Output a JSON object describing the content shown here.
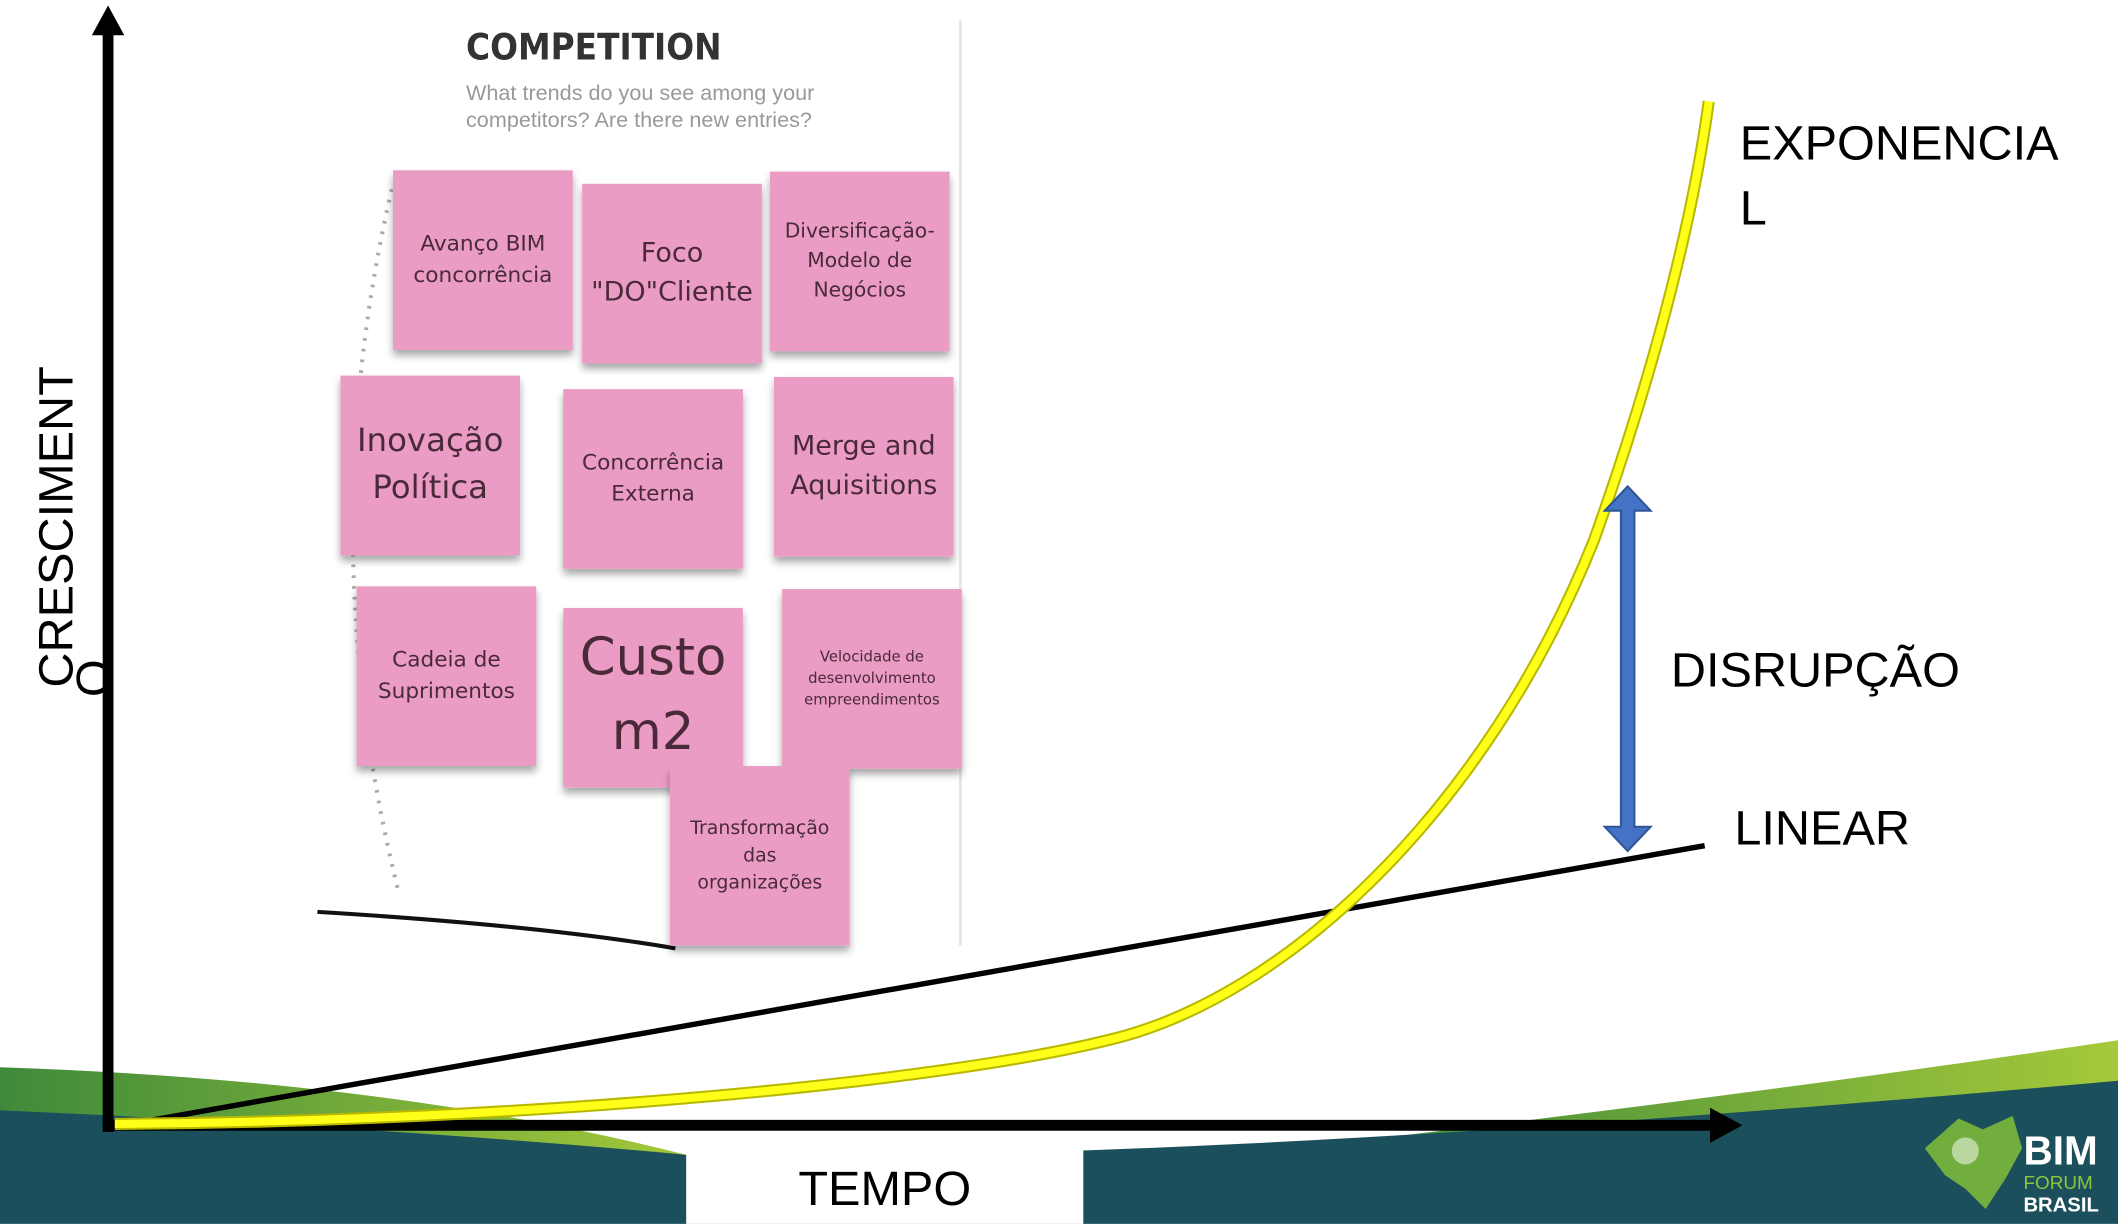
{
  "board": {
    "title": "COMPETITION",
    "subtitle": [
      "What trends do you see among your",
      "competitors? Are there new entries?"
    ],
    "notes": [
      {
        "lines": [
          "Avanço BIM",
          "concorrência"
        ]
      },
      {
        "lines": [
          "Foco",
          "\"DO\"Cliente"
        ]
      },
      {
        "lines": [
          "Diversificação-",
          "Modelo de",
          "Negócios"
        ]
      },
      {
        "lines": [
          "Inovação",
          "Política"
        ]
      },
      {
        "lines": [
          "Concorrência",
          "Externa"
        ]
      },
      {
        "lines": [
          "Merge and",
          "Aquisitions"
        ]
      },
      {
        "lines": [
          "Cadeia de",
          "Suprimentos"
        ]
      },
      {
        "lines": [
          "Custo",
          "m2"
        ]
      },
      {
        "lines": [
          "Velocidade de",
          "desenvolvimento",
          "empreendimentos"
        ]
      },
      {
        "lines": [
          "Transformação",
          "das",
          "organizações"
        ]
      }
    ]
  },
  "axes": {
    "y_label": [
      "CRESCIMENT",
      "O"
    ],
    "x_label": "TEMPO"
  },
  "curves": {
    "exponential": [
      "EXPONENCIA",
      "L"
    ],
    "disruption": "DISRUPÇÃO",
    "linear": "LINEAR"
  },
  "logo": {
    "lines": [
      "BIM",
      "FORUM",
      "BRASIL"
    ]
  }
}
